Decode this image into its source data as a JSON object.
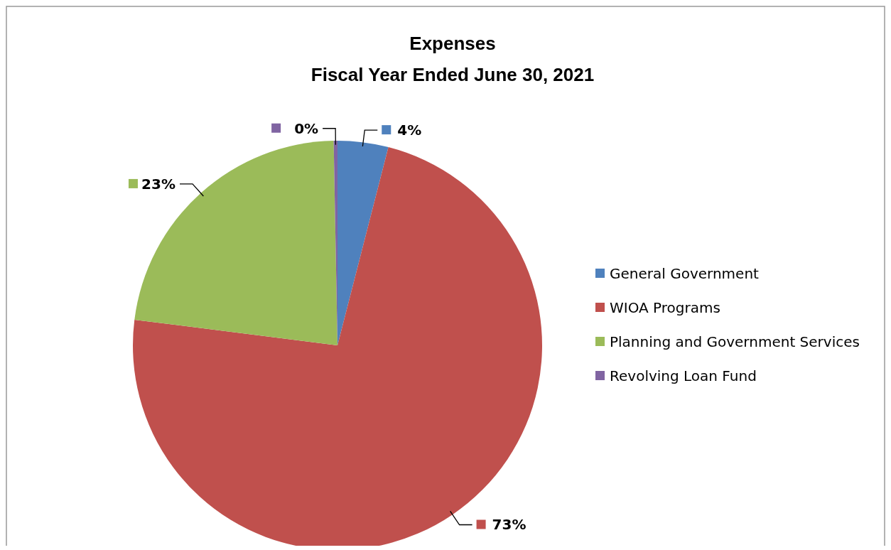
{
  "chart_data": {
    "type": "pie",
    "title": "Expenses",
    "subtitle": "Fiscal Year Ended June 30, 2021",
    "categories": [
      "General Government",
      "WIOA Programs",
      "Planning and Government Services",
      "Revolving Loan Fund"
    ],
    "values": [
      4,
      73,
      22.7,
      0.3
    ],
    "colors": [
      "#4f81bd",
      "#c0504d",
      "#9bbb59",
      "#8064a2"
    ],
    "value_labels": [
      "4%",
      "73%",
      "23%",
      "0%"
    ],
    "legend": "right"
  }
}
